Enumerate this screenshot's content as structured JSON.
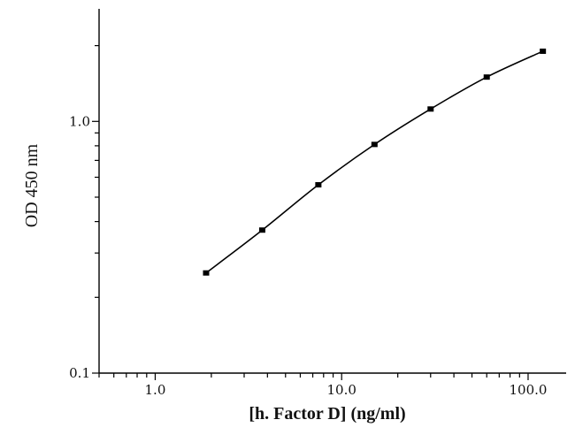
{
  "chart_data": {
    "type": "line",
    "title": "",
    "xlabel": "[h. Factor D] (ng/ml)",
    "ylabel": "OD 450 nm",
    "x_scale": "log",
    "y_scale": "log",
    "xlim": [
      0.5,
      160
    ],
    "ylim": [
      0.1,
      2.8
    ],
    "x_ticks": [
      {
        "value": 1,
        "label": "1.0"
      },
      {
        "value": 10,
        "label": "10.0"
      },
      {
        "value": 100,
        "label": "100.0"
      }
    ],
    "y_ticks": [
      {
        "value": 0.1,
        "label": "0.1"
      },
      {
        "value": 1,
        "label": "1.0"
      }
    ],
    "grid": false,
    "legend": "none",
    "series": [
      {
        "x": [
          1.875,
          3.75,
          7.5,
          15,
          30,
          60,
          120
        ],
        "y": [
          0.25,
          0.37,
          0.56,
          0.81,
          1.12,
          1.5,
          1.9
        ]
      }
    ],
    "colors": {
      "line": "#000000",
      "axis": "#000000"
    }
  }
}
